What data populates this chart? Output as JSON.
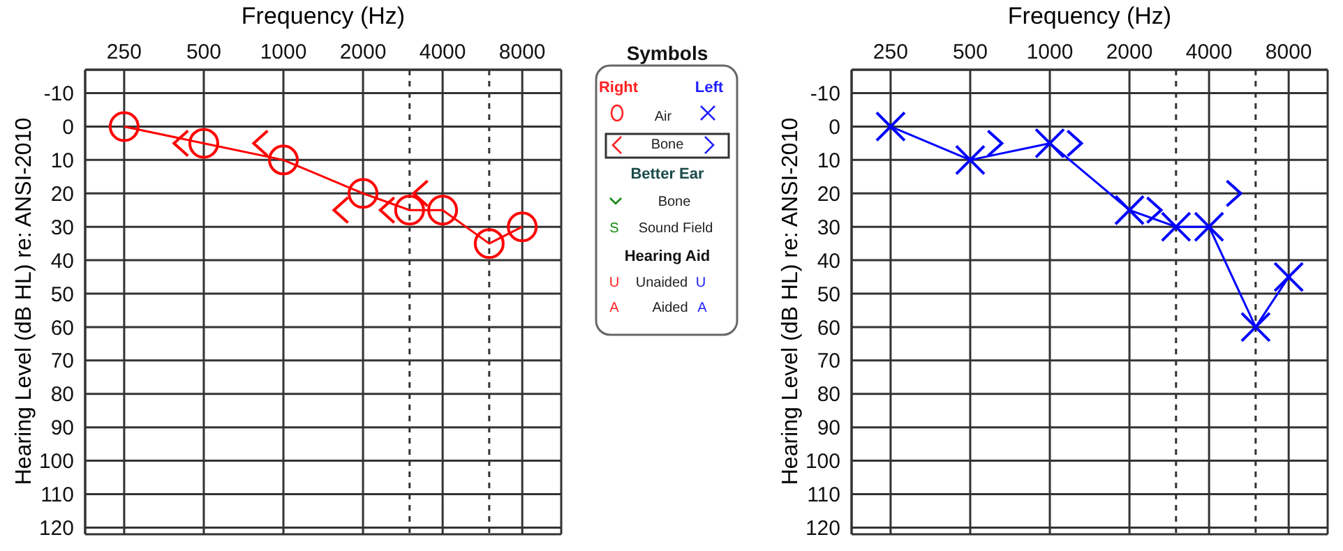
{
  "chart_data": [
    {
      "type": "line",
      "xlabel": "Frequency (Hz)",
      "ylabel": "Hearing Level (dB HL) re: ANSI-2010",
      "log": "x",
      "xlim": [
        178,
        11230
      ],
      "xticks": [
        250,
        500,
        1000,
        2000,
        4000,
        8000
      ],
      "ylim": [
        122,
        -17
      ],
      "yticks": [
        -10,
        0,
        10,
        20,
        30,
        40,
        50,
        60,
        70,
        80,
        90,
        100,
        110,
        120
      ],
      "grid": true,
      "ref_lines": [
        {
          "axis": "x",
          "value": 3000,
          "line_style": "dashed",
          "color": "#333333"
        },
        {
          "axis": "x",
          "value": 6000,
          "line_style": "dashed",
          "color": "#333333"
        }
      ],
      "series": [
        {
          "type": "line",
          "marker": "circle",
          "color": "#ff0000",
          "x": [
            250,
            500,
            1000,
            2000,
            3000,
            4000,
            6000,
            8000
          ],
          "values": [
            0,
            5,
            10,
            20,
            25,
            25,
            35,
            30
          ]
        },
        {
          "type": "scatter",
          "color": "#ff0000",
          "x": [
            410,
            820,
            1650,
            2470,
            3300
          ],
          "values": [
            5,
            5,
            25,
            25,
            20
          ]
        }
      ]
    },
    {
      "type": "other",
      "title": "Symbols",
      "annotations": [
        "Right",
        "Left",
        "Air",
        "Bone",
        "Better Ear",
        "Bone",
        "S",
        "Sound Field",
        "Hearing Aid",
        "U",
        "Unaided",
        "U",
        "A",
        "Aided",
        "A"
      ]
    },
    {
      "type": "line",
      "xlabel": "Frequency (Hz)",
      "ylabel": "Hearing Level (dB HL) re: ANSI-2010",
      "log": "x",
      "xlim": [
        178,
        11230
      ],
      "xticks": [
        250,
        500,
        1000,
        2000,
        4000,
        8000
      ],
      "ylim": [
        122,
        -17
      ],
      "yticks": [
        -10,
        0,
        10,
        20,
        30,
        40,
        50,
        60,
        70,
        80,
        90,
        100,
        110,
        120
      ],
      "grid": true,
      "ref_lines": [
        {
          "axis": "x",
          "value": 3000,
          "line_style": "dashed",
          "color": "#333333"
        },
        {
          "axis": "x",
          "value": 6000,
          "line_style": "dashed",
          "color": "#333333"
        }
      ],
      "series": [
        {
          "type": "line",
          "marker": "cross",
          "color": "#0000ff",
          "x": [
            250,
            500,
            1000,
            2000,
            3000,
            4000,
            6000,
            8000
          ],
          "values": [
            0,
            10,
            5,
            25,
            30,
            30,
            60,
            45
          ]
        },
        {
          "type": "scatter",
          "color": "#0000ff",
          "x": [
            620,
            1240,
            2480,
            4960
          ],
          "values": [
            5,
            5,
            25,
            20
          ]
        }
      ]
    }
  ]
}
